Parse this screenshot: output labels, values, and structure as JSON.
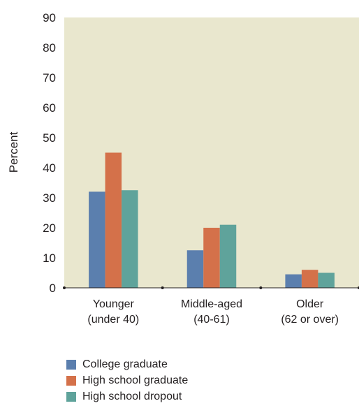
{
  "chart_data": {
    "type": "bar",
    "ylabel": "Percent",
    "ylim": [
      0,
      90
    ],
    "yticks": [
      0,
      10,
      20,
      30,
      40,
      50,
      60,
      70,
      80,
      90
    ],
    "categories": [
      {
        "line1": "Younger",
        "line2": "(under 40)"
      },
      {
        "line1": "Middle-aged",
        "line2": "(40-61)"
      },
      {
        "line1": "Older",
        "line2": "(62 or over)"
      }
    ],
    "series": [
      {
        "name": "College graduate",
        "color": "#5b7fae",
        "values": [
          32,
          12.5,
          4.5
        ]
      },
      {
        "name": "High school graduate",
        "color": "#d4714a",
        "values": [
          45,
          20,
          6
        ]
      },
      {
        "name": "High school dropout",
        "color": "#5fa39b",
        "values": [
          32.5,
          21,
          5
        ]
      }
    ],
    "plot_background": "#e9e7ce",
    "grid": false,
    "legend_position": "bottom-left"
  }
}
